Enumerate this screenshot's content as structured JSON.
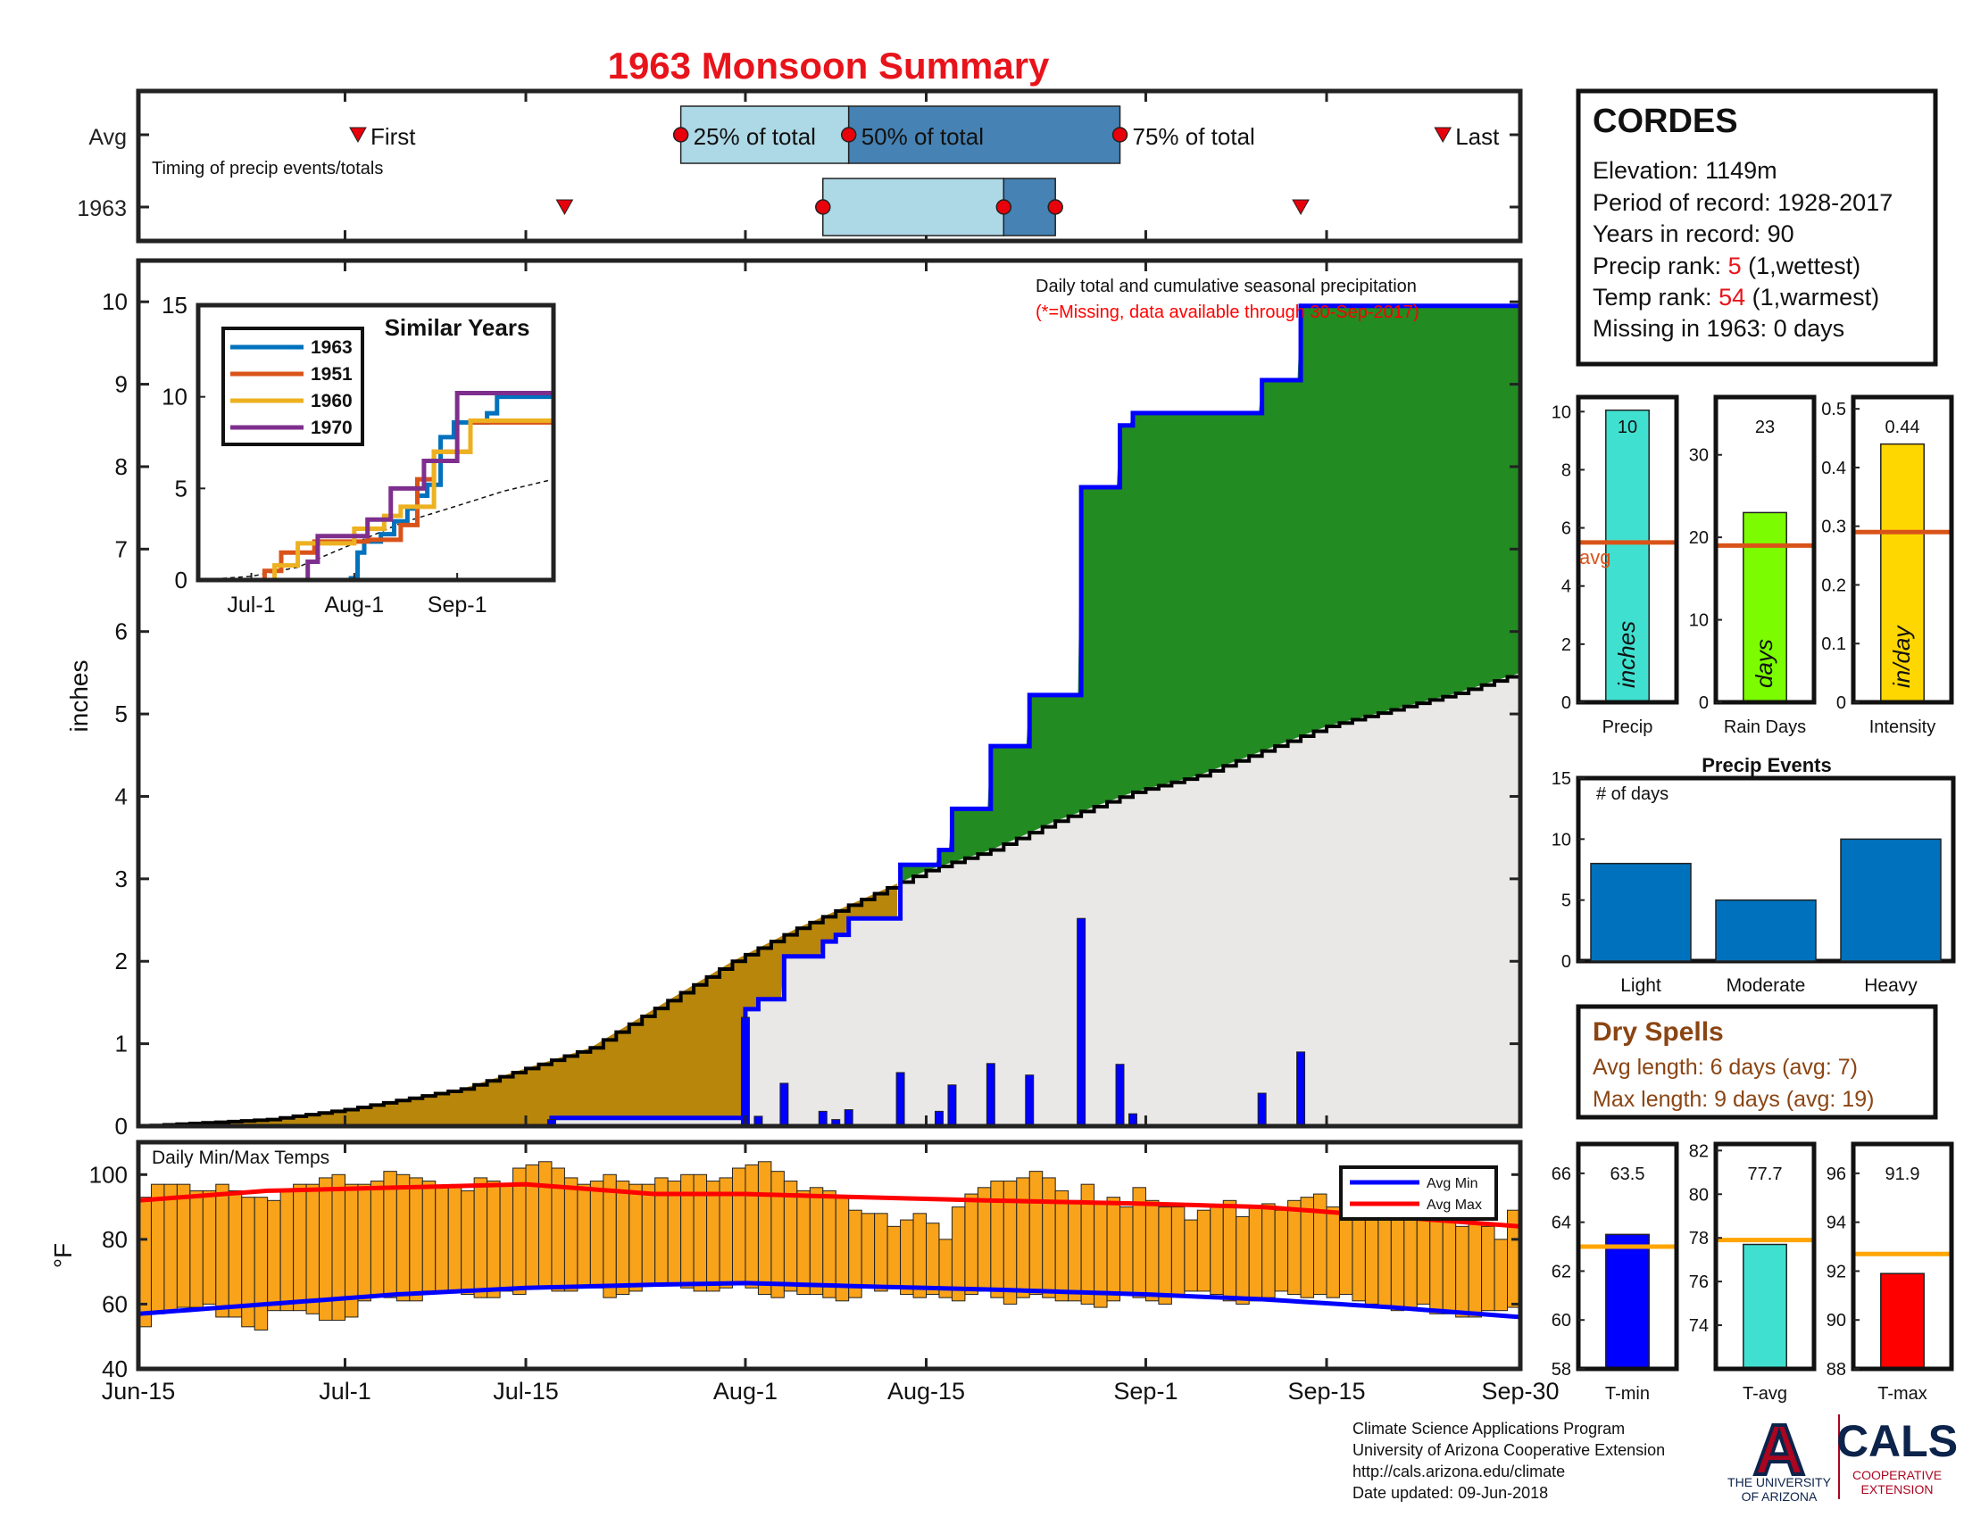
{
  "title": "1963 Monsoon Summary",
  "colors": {
    "title": "#e8141b",
    "green": "#228b22",
    "brown": "#b8860b",
    "gray": "#e9e8e7",
    "blue_line": "#0000ff",
    "black": "#000000",
    "avg_line": "#d95319",
    "temp_bar": "#f8a31a",
    "avg_min": "#0000ff",
    "avg_max": "#ff0000",
    "precip_bar": "#40e0d0",
    "rain_bar": "#7cfc00",
    "intensity_bar": "#ffd700",
    "event_bar": "#0072bd",
    "light_blue": "#add8e6",
    "steel_blue": "#4682b4",
    "marker_red": "#e8000b",
    "dry_text": "#8b4513",
    "tmin_bar": "#0000ff",
    "tavg_bar": "#40e0d0",
    "tmax_bar": "#ff0000",
    "temp_avg_line": "#ffa500"
  },
  "timing": {
    "row_labels": [
      "Avg",
      "1963"
    ],
    "caption": "Timing of precip events/totals",
    "labels": {
      "first": "First",
      "p25": "25% of total",
      "p50": "50% of total",
      "p75": "75% of total",
      "last": "Last"
    },
    "avg": {
      "first": "2019-07-02",
      "p25": "2019-07-27",
      "p50": "2019-08-09",
      "p75": "2019-08-30",
      "last": "2019-09-24"
    },
    "year": {
      "first": "2019-07-18",
      "p25": "2019-08-07",
      "p50": "2019-08-21",
      "p75": "2019-08-25",
      "last": "2019-09-13"
    }
  },
  "station": {
    "name": "CORDES",
    "elevation_label": "Elevation: ",
    "elevation": "1149m",
    "period_label": "Period of record: ",
    "period": "1928-2017",
    "years_label": "Years in record: ",
    "years": "90",
    "precip_rank_label": "Precip rank: ",
    "precip_rank": "5",
    "precip_rank_note": " (1,wettest)",
    "temp_rank_label": "Temp rank: ",
    "temp_rank": "54",
    "temp_rank_note": " (1,warmest)",
    "missing_label": "Missing in 1963: ",
    "missing": "0 days"
  },
  "dry_spells": {
    "title": "Dry Spells",
    "avg_line": "Avg length: 6 days (avg: 7)",
    "max_line": "Max length: 9 days (avg: 19)"
  },
  "footer": {
    "line1": "Climate Science Applications Program",
    "line2": "University of Arizona Cooperative Extension",
    "line3": "http://cals.arizona.edu/climate",
    "line4": " Date updated: 09-Jun-2018"
  },
  "logos": {
    "ua_letter": "A",
    "ua_line1": "THE UNIVERSITY",
    "ua_line2": "OF ARIZONA",
    "cals": "CALS",
    "cals_line1": "COOPERATIVE",
    "cals_line2": "EXTENSION"
  },
  "chart_data": [
    {
      "id": "main_precip",
      "type": "area",
      "title": "Daily total and cumulative seasonal precipitation",
      "subtitle": "(*=Missing, data available through 30-Sep-2017)",
      "ylabel": "inches",
      "ylim": [
        0,
        10.5
      ],
      "yticks": [
        0,
        1,
        2,
        3,
        4,
        5,
        6,
        7,
        8,
        9,
        10
      ],
      "xticks": [
        "Jun-15",
        "Jul-1",
        "Jul-15",
        "Aug-1",
        "Aug-15",
        "Sep-1",
        "Sep-15",
        "Sep-30"
      ],
      "x_range": [
        "2019-06-15",
        "2019-09-30"
      ],
      "avg_cumulative": {
        "x": [
          "2019-06-15",
          "2019-06-25",
          "2019-07-01",
          "2019-07-10",
          "2019-07-20",
          "2019-07-31",
          "2019-08-05",
          "2019-08-10",
          "2019-08-15",
          "2019-08-20",
          "2019-08-25",
          "2019-08-31",
          "2019-09-05",
          "2019-09-10",
          "2019-09-15",
          "2019-09-20",
          "2019-09-25",
          "2019-09-30"
        ],
        "y": [
          0,
          0.08,
          0.2,
          0.45,
          0.95,
          2.0,
          2.4,
          2.75,
          3.1,
          3.35,
          3.7,
          4.05,
          4.25,
          4.55,
          4.85,
          5.05,
          5.25,
          5.5
        ]
      },
      "daily_precip": {
        "x": [
          "2019-06-20",
          "2019-07-17",
          "2019-08-01",
          "2019-08-02",
          "2019-08-04",
          "2019-08-07",
          "2019-08-08",
          "2019-08-09",
          "2019-08-13",
          "2019-08-16",
          "2019-08-17",
          "2019-08-20",
          "2019-08-23",
          "2019-08-27",
          "2019-08-30",
          "2019-08-31",
          "2019-09-10",
          "2019-09-13"
        ],
        "y": [
          0.02,
          0.08,
          1.32,
          0.12,
          0.52,
          0.18,
          0.08,
          0.2,
          0.65,
          0.18,
          0.5,
          0.76,
          0.62,
          2.52,
          0.75,
          0.15,
          0.4,
          0.9
        ]
      },
      "cumulative": {
        "x": [
          "2019-06-15",
          "2019-07-17",
          "2019-08-01",
          "2019-08-02",
          "2019-08-04",
          "2019-08-07",
          "2019-08-08",
          "2019-08-09",
          "2019-08-13",
          "2019-08-16",
          "2019-08-17",
          "2019-08-20",
          "2019-08-23",
          "2019-08-27",
          "2019-08-30",
          "2019-08-31",
          "2019-09-10",
          "2019-09-13",
          "2019-09-30"
        ],
        "y": [
          0,
          0.1,
          1.42,
          1.54,
          2.06,
          2.24,
          2.32,
          2.52,
          3.17,
          3.35,
          3.85,
          4.61,
          5.23,
          7.75,
          8.5,
          8.65,
          9.05,
          9.95,
          10.05
        ]
      }
    },
    {
      "id": "similar_years",
      "type": "line",
      "title": "Similar Years",
      "ylim": [
        0,
        15
      ],
      "yticks": [
        0,
        5,
        10,
        15
      ],
      "xticks": [
        "Jul-1",
        "Aug-1",
        "Sep-1"
      ],
      "x_range": [
        "2019-06-15",
        "2019-09-30"
      ],
      "series": [
        {
          "name": "1963",
          "color": "#0072bd",
          "x": [
            "2019-06-15",
            "2019-07-31",
            "2019-08-02",
            "2019-08-04",
            "2019-08-09",
            "2019-08-13",
            "2019-08-17",
            "2019-08-20",
            "2019-08-23",
            "2019-08-27",
            "2019-08-31",
            "2019-09-10",
            "2019-09-13",
            "2019-09-30"
          ],
          "y": [
            0,
            0.1,
            1.5,
            2.1,
            2.5,
            3.2,
            3.9,
            4.6,
            5.2,
            7.8,
            8.6,
            9.1,
            10.0,
            10.0
          ]
        },
        {
          "name": "1951",
          "color": "#d95319",
          "x": [
            "2019-06-15",
            "2019-07-05",
            "2019-07-10",
            "2019-07-20",
            "2019-08-05",
            "2019-08-15",
            "2019-08-20",
            "2019-08-25",
            "2019-09-05",
            "2019-09-30"
          ],
          "y": [
            0,
            0.5,
            1.5,
            2.1,
            2.2,
            3.0,
            5.5,
            7.0,
            8.6,
            8.6
          ]
        },
        {
          "name": "1960",
          "color": "#edb120",
          "x": [
            "2019-06-15",
            "2019-07-08",
            "2019-07-15",
            "2019-08-01",
            "2019-08-10",
            "2019-08-15",
            "2019-08-25",
            "2019-09-05",
            "2019-09-30"
          ],
          "y": [
            0,
            0.8,
            2.0,
            2.8,
            3.5,
            4.0,
            7.0,
            8.7,
            8.8
          ]
        },
        {
          "name": "1970",
          "color": "#7e2f8e",
          "x": [
            "2019-06-15",
            "2019-07-18",
            "2019-07-21",
            "2019-07-28",
            "2019-08-05",
            "2019-08-12",
            "2019-08-22",
            "2019-09-01",
            "2019-09-30"
          ],
          "y": [
            0,
            1.0,
            2.4,
            2.4,
            3.3,
            5.0,
            6.5,
            10.2,
            10.3
          ]
        }
      ],
      "avg_line": {
        "x": [
          "2019-06-15",
          "2019-07-01",
          "2019-07-15",
          "2019-08-01",
          "2019-08-15",
          "2019-09-01",
          "2019-09-15",
          "2019-09-30"
        ],
        "y": [
          0,
          0.2,
          0.7,
          2.0,
          3.1,
          4.05,
          4.85,
          5.5
        ]
      }
    },
    {
      "id": "precip_bar",
      "type": "bar",
      "categories": [
        "Precip"
      ],
      "values": [
        10.05
      ],
      "value_label": "10",
      "bar_text": "inches",
      "ylim": [
        0,
        10.5
      ],
      "yticks": [
        0,
        2,
        4,
        6,
        8,
        10
      ],
      "avg": 5.5,
      "avg_label": "avg"
    },
    {
      "id": "rain_days_bar",
      "type": "bar",
      "categories": [
        "Rain Days"
      ],
      "values": [
        23
      ],
      "value_label": "23",
      "bar_text": "days",
      "ylim": [
        0,
        37
      ],
      "yticks": [
        0,
        10,
        20,
        30
      ],
      "avg": 19
    },
    {
      "id": "intensity_bar",
      "type": "bar",
      "categories": [
        "Intensity"
      ],
      "values": [
        0.44
      ],
      "value_label": "0.44",
      "bar_text": "in/day",
      "ylim": [
        0,
        0.52
      ],
      "yticks": [
        0,
        0.1,
        0.2,
        0.3,
        0.4,
        0.5
      ],
      "avg": 0.29
    },
    {
      "id": "precip_events",
      "type": "bar",
      "title": "Precip Events",
      "ylabel": "# of days",
      "categories": [
        "Light",
        "Moderate",
        "Heavy"
      ],
      "values": [
        8,
        5,
        10
      ],
      "ylim": [
        0,
        15
      ],
      "yticks": [
        0,
        5,
        10,
        15
      ]
    },
    {
      "id": "daily_temps",
      "type": "bar",
      "title": "Daily Min/Max Temps",
      "ylabel": "°F",
      "ylim": [
        40,
        110
      ],
      "yticks": [
        40,
        60,
        80,
        100
      ],
      "xticks": [
        "Jun-15",
        "Jul-1",
        "Jul-15",
        "Aug-1",
        "Aug-15",
        "Sep-1",
        "Sep-15",
        "Sep-30"
      ],
      "x_range": [
        "2019-06-15",
        "2019-09-30"
      ],
      "start_date": "2019-06-15",
      "tmax": [
        93,
        97,
        97,
        97,
        95,
        95,
        97,
        95,
        93,
        93,
        92,
        95,
        97,
        97,
        99,
        100,
        97,
        97,
        98,
        101,
        100,
        99,
        98,
        96,
        96,
        95,
        99,
        98,
        97,
        102,
        103,
        104,
        102,
        99,
        97,
        98,
        100,
        98,
        97,
        97,
        99,
        98,
        100,
        100,
        98,
        99,
        102,
        103,
        104,
        101,
        98,
        95,
        96,
        95,
        93,
        89,
        88,
        88,
        84,
        86,
        88,
        85,
        80,
        90,
        94,
        96,
        98,
        98,
        99,
        101,
        99,
        95,
        92,
        97,
        91,
        93,
        90,
        96,
        92,
        90,
        90,
        86,
        89,
        90,
        92,
        87,
        90,
        91,
        89,
        92,
        93,
        94,
        90,
        88,
        91,
        95,
        96,
        94,
        93,
        91,
        88,
        87,
        84,
        85,
        84,
        80,
        89,
        87,
        92,
        90
      ],
      "tmin": [
        53,
        57,
        58,
        59,
        59,
        60,
        56,
        56,
        53,
        52,
        58,
        58,
        58,
        57,
        55,
        55,
        56,
        61,
        63,
        62,
        61,
        61,
        64,
        64,
        64,
        63,
        62,
        62,
        64,
        63,
        65,
        65,
        64,
        64,
        65,
        65,
        62,
        63,
        64,
        66,
        66,
        66,
        65,
        64,
        64,
        65,
        66,
        65,
        63,
        62,
        64,
        63,
        63,
        62,
        61,
        62,
        65,
        64,
        65,
        63,
        62,
        63,
        62,
        61,
        63,
        64,
        62,
        60,
        62,
        63,
        62,
        61,
        61,
        60,
        59,
        61,
        63,
        62,
        61,
        60,
        63,
        64,
        64,
        63,
        61,
        60,
        61,
        62,
        64,
        63,
        62,
        63,
        62,
        63,
        61,
        60,
        59,
        58,
        59,
        60,
        57,
        57,
        56,
        56,
        58,
        58,
        59,
        60,
        58,
        57
      ],
      "avg_min": {
        "x": [
          "2019-06-15",
          "2019-06-25",
          "2019-07-05",
          "2019-07-15",
          "2019-07-25",
          "2019-08-01",
          "2019-08-10",
          "2019-08-20",
          "2019-09-01",
          "2019-09-10",
          "2019-09-20",
          "2019-09-30"
        ],
        "y": [
          57,
          60,
          63,
          65,
          66,
          66.5,
          65.5,
          64.5,
          63,
          61.5,
          59,
          56
        ]
      },
      "avg_max": {
        "x": [
          "2019-06-15",
          "2019-06-25",
          "2019-07-05",
          "2019-07-15",
          "2019-07-25",
          "2019-08-01",
          "2019-08-10",
          "2019-08-20",
          "2019-09-01",
          "2019-09-10",
          "2019-09-20",
          "2019-09-30"
        ],
        "y": [
          92,
          95,
          96,
          97,
          94,
          94,
          93,
          92,
          91,
          90,
          87,
          84
        ]
      },
      "legend": [
        "Avg Min",
        "Avg Max"
      ]
    },
    {
      "id": "tmin_bar",
      "type": "bar",
      "categories": [
        "T-min"
      ],
      "values": [
        63.5
      ],
      "value_label": "63.5",
      "ylim": [
        58,
        67.2
      ],
      "yticks": [
        58,
        60,
        62,
        64,
        66
      ],
      "avg": 63.0
    },
    {
      "id": "tavg_bar",
      "type": "bar",
      "categories": [
        "T-avg"
      ],
      "values": [
        77.7
      ],
      "value_label": "77.7",
      "ylim": [
        72,
        82.3
      ],
      "yticks": [
        74,
        76,
        78,
        80,
        82
      ],
      "avg": 77.9
    },
    {
      "id": "tmax_bar",
      "type": "bar",
      "categories": [
        "T-max"
      ],
      "values": [
        91.9
      ],
      "value_label": "91.9",
      "ylim": [
        88,
        97.2
      ],
      "yticks": [
        88,
        90,
        92,
        94,
        96
      ],
      "avg": 92.7
    }
  ]
}
